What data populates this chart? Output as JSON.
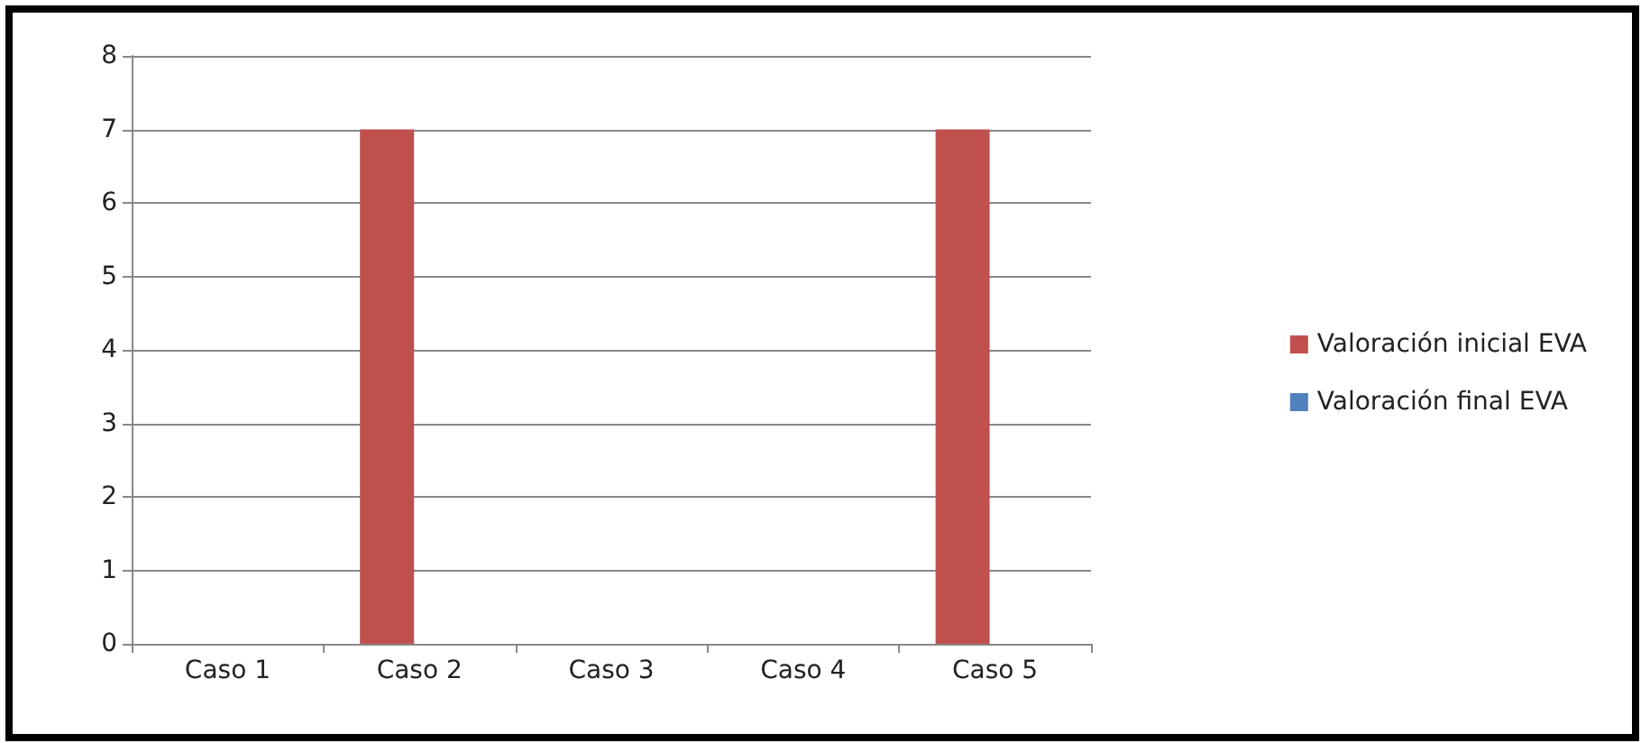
{
  "chart_data": {
    "type": "bar",
    "categories": [
      "Caso 1",
      "Caso 2",
      "Caso 3",
      "Caso 4",
      "Caso 5"
    ],
    "series": [
      {
        "name": "Valoración inicial EVA",
        "color": "#c0504d",
        "values": [
          0,
          7,
          0,
          0,
          7
        ]
      },
      {
        "name": "Valoración final EVA",
        "color": "#4f81bd",
        "values": [
          0,
          0,
          0,
          0,
          0
        ]
      }
    ],
    "ylim": [
      0,
      8
    ],
    "yticks": [
      0,
      1,
      2,
      3,
      4,
      5,
      6,
      7,
      8
    ],
    "grid": "y",
    "legend": "right"
  }
}
